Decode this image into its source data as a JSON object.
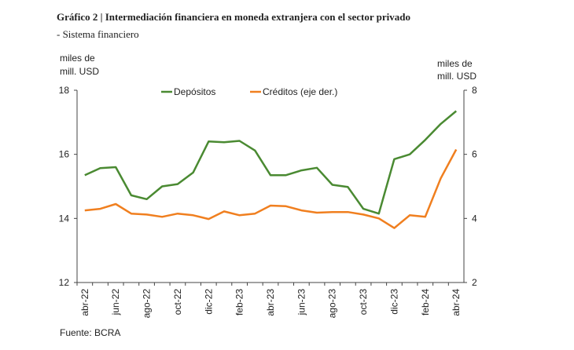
{
  "chart_data": {
    "type": "line",
    "title": "Gráfico 2 | Intermediación financiera en moneda extranjera con el sector privado",
    "subtitle": "- Sistema financiero",
    "source": "Fuente: BCRA",
    "ylabel": [
      "miles de",
      "mill. USD"
    ],
    "y2label": [
      "miles de",
      "mill. USD"
    ],
    "categories": [
      "abr-22",
      null,
      "jun-22",
      null,
      "ago-22",
      null,
      "oct-22",
      null,
      "dic-22",
      null,
      "feb-23",
      null,
      "abr-23",
      null,
      "jun-23",
      null,
      "ago-23",
      null,
      "oct-23",
      null,
      "dic-23",
      null,
      "feb-24",
      null,
      "abr-24"
    ],
    "ylim": [
      12,
      18
    ],
    "yticks": [
      12,
      14,
      16,
      18
    ],
    "y2lim": [
      2,
      8
    ],
    "y2ticks": [
      2,
      4,
      6,
      8
    ],
    "legend": "top",
    "series": [
      {
        "name": "Depósitos",
        "color": "#4a8a32",
        "values": [
          15.35,
          15.57,
          15.6,
          14.72,
          14.6,
          15.0,
          15.07,
          15.43,
          16.4,
          16.38,
          16.42,
          16.12,
          15.35,
          15.35,
          15.5,
          15.58,
          15.05,
          14.98,
          14.3,
          14.15,
          15.85,
          16.0,
          16.45,
          16.95,
          17.35
        ]
      },
      {
        "name": "Créditos (eje der.)",
        "color": "#f07f1f",
        "axis": "y2",
        "values": [
          4.25,
          4.3,
          4.45,
          4.15,
          4.12,
          4.05,
          4.15,
          4.1,
          3.98,
          4.22,
          4.1,
          4.15,
          4.4,
          4.38,
          4.25,
          4.18,
          4.2,
          4.2,
          4.12,
          4.0,
          3.7,
          4.1,
          4.05,
          5.25,
          6.15
        ]
      }
    ]
  }
}
